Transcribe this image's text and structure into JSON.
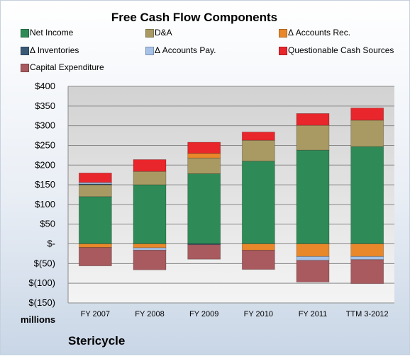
{
  "chart_data": {
    "type": "bar",
    "title": "Free Cash Flow Components",
    "categories": [
      "FY 2007",
      "FY 2008",
      "FY 2009",
      "FY 2010",
      "FY 2011",
      "TTM 3-2012"
    ],
    "series": [
      {
        "name": "Net Income",
        "color": "#2e8b57",
        "values": [
          120,
          150,
          178,
          210,
          238,
          247
        ]
      },
      {
        "name": "D&A",
        "color": "#a99a63",
        "values": [
          30,
          34,
          40,
          53,
          63,
          67
        ]
      },
      {
        "name": "Δ Accounts Rec.",
        "color": "#e8882a",
        "values": [
          -9,
          -10,
          12,
          -16,
          -32,
          -32
        ]
      },
      {
        "name": "Δ Inventories",
        "color": "#3b5a78",
        "values": [
          2,
          0,
          -2,
          0,
          0,
          0
        ]
      },
      {
        "name": "Δ Accounts Pay.",
        "color": "#a6c2e8",
        "values": [
          4,
          -6,
          0,
          0,
          -10,
          -8
        ]
      },
      {
        "name": "Questionable Cash Sources",
        "color": "#e8262b",
        "values": [
          24,
          30,
          28,
          21,
          30,
          31
        ]
      },
      {
        "name": "Capital Expenditure",
        "color": "#a85a5e",
        "values": [
          -47,
          -50,
          -37,
          -49,
          -55,
          -61
        ]
      }
    ],
    "ylim": [
      -150,
      400
    ],
    "yticks": [
      400,
      350,
      300,
      250,
      200,
      150,
      100,
      50,
      0,
      -50,
      -100,
      -150
    ],
    "ytick_labels": [
      "$400",
      "$350",
      "$300",
      "$250",
      "$200",
      "$150",
      "$100",
      "$50",
      "$-",
      "$(50)",
      "$(100)",
      "$(150)"
    ],
    "grid": true,
    "legend_position": "top",
    "units_label": "millions",
    "company": "Stericycle"
  }
}
